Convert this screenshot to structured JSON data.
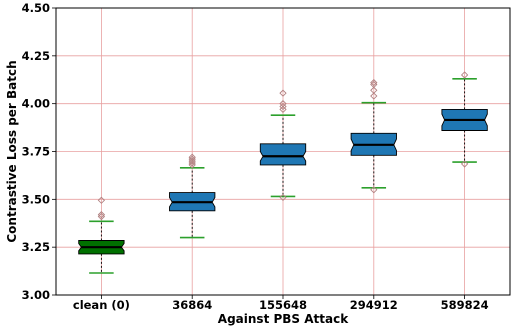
{
  "chart_data": {
    "type": "box",
    "title": "",
    "xlabel": "Against PBS Attack",
    "ylabel": "Contrastive Loss per Batch",
    "ylim": [
      3.0,
      4.5
    ],
    "yticks": [
      "3.00",
      "3.25",
      "3.50",
      "3.75",
      "4.00",
      "4.25",
      "4.50"
    ],
    "grid": true,
    "notched": true,
    "categories": [
      "clean (0)",
      "36864",
      "155648",
      "294912",
      "589824"
    ],
    "boxes": [
      {
        "category": "clean (0)",
        "whisker_low": 3.115,
        "q1": 3.215,
        "median": 3.25,
        "q3": 3.285,
        "whisker_high": 3.385,
        "outliers": [
          3.41,
          3.42,
          3.495
        ],
        "color": "#007000"
      },
      {
        "category": "36864",
        "whisker_low": 3.3,
        "q1": 3.44,
        "median": 3.485,
        "q3": 3.535,
        "whisker_high": 3.665,
        "outliers": [
          3.68,
          3.69,
          3.7,
          3.71,
          3.72
        ],
        "color": "#1f77b4"
      },
      {
        "category": "155648",
        "whisker_low": 3.515,
        "q1": 3.68,
        "median": 3.725,
        "q3": 3.79,
        "whisker_high": 3.94,
        "outliers": [
          3.51,
          3.97,
          3.985,
          4.0,
          4.055
        ],
        "color": "#1f77b4"
      },
      {
        "category": "294912",
        "whisker_low": 3.56,
        "q1": 3.73,
        "median": 3.785,
        "q3": 3.845,
        "whisker_high": 4.005,
        "outliers": [
          3.55,
          4.04,
          4.07,
          4.1,
          4.11
        ],
        "color": "#1f77b4"
      },
      {
        "category": "589824",
        "whisker_low": 3.695,
        "q1": 3.86,
        "median": 3.915,
        "q3": 3.97,
        "whisker_high": 4.13,
        "outliers": [
          3.685,
          4.15
        ],
        "color": "#1f77b4"
      }
    ],
    "grid_color": "#e8a0a0",
    "whisker_color": "#2ca02c",
    "outlier_color": "#b08080"
  }
}
